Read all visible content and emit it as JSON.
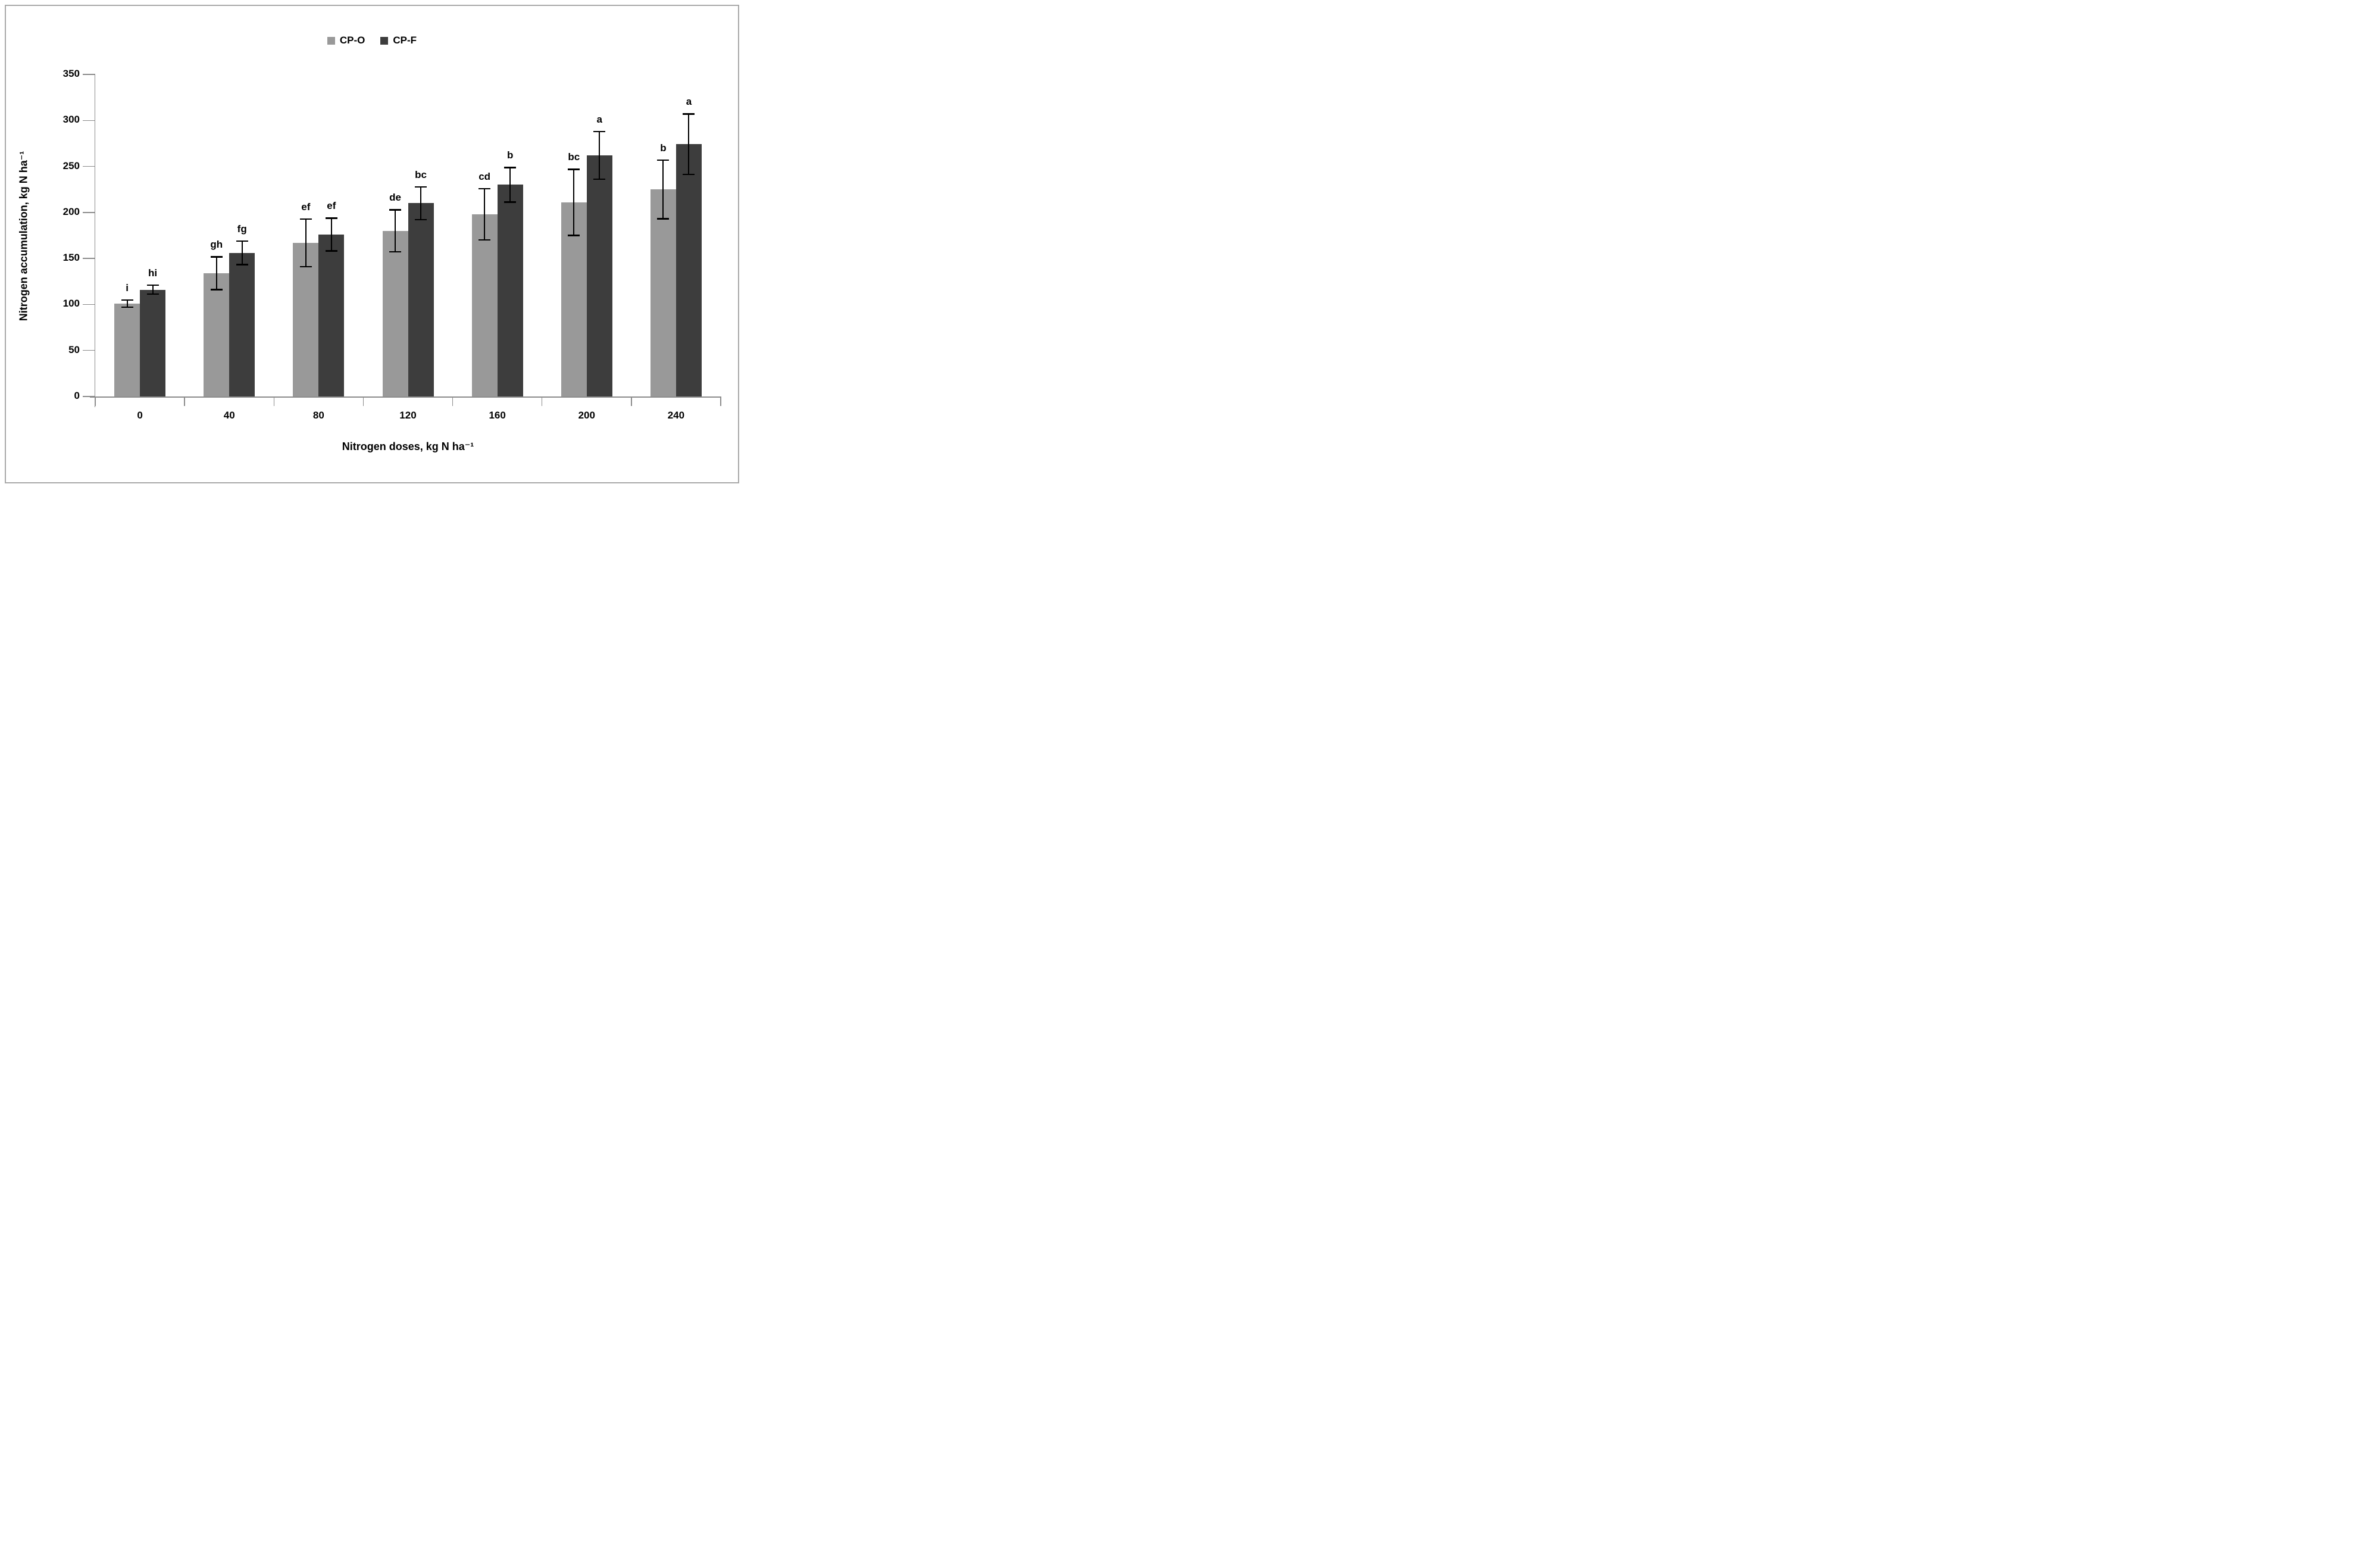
{
  "figure": {
    "background": "#ffffff",
    "border_color": "#a9a9a9",
    "axis_color": "#8c8c8c",
    "error_bar_color": "#000000"
  },
  "legend": {
    "position": "top-center",
    "items": [
      {
        "label": "CP-O",
        "color": "#999999"
      },
      {
        "label": "CP-F",
        "color": "#3d3d3d"
      }
    ]
  },
  "chart_data": {
    "type": "bar",
    "title": "",
    "xlabel": "Nitrogen doses, kg N ha⁻¹",
    "ylabel": "Nitrogen accumulation, kg N ha⁻¹",
    "categories": [
      "0",
      "40",
      "80",
      "120",
      "160",
      "200",
      "240"
    ],
    "y_ticks": [
      0,
      50,
      100,
      150,
      200,
      250,
      300,
      350
    ],
    "ylim": [
      0,
      350
    ],
    "grid": false,
    "legend_position": "top-center",
    "series": [
      {
        "name": "CP-O",
        "color": "#999999",
        "values": [
          101,
          134,
          167,
          180,
          198,
          211,
          225
        ],
        "errors": [
          4,
          18,
          26,
          23,
          28,
          36,
          32
        ],
        "letters": [
          "i",
          "gh",
          "ef",
          "de",
          "cd",
          "bc",
          "b"
        ]
      },
      {
        "name": "CP-F",
        "color": "#3d3d3d",
        "values": [
          116,
          156,
          176,
          210,
          230,
          262,
          274
        ],
        "errors": [
          5,
          13,
          18,
          18,
          19,
          26,
          33
        ],
        "letters": [
          "hi",
          "fg",
          "ef",
          "bc",
          "b",
          "a",
          "a"
        ]
      }
    ]
  }
}
